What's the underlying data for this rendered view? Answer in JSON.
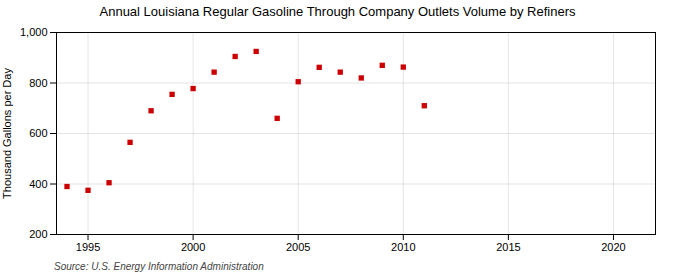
{
  "chart_data": {
    "type": "scatter",
    "title": "Annual Louisiana Regular Gasoline Through Company Outlets Volume by Refiners",
    "ylabel": "Thousand Gallons per Day",
    "annotations": [
      "Source: U.S. Energy Information Administration"
    ],
    "x": [
      1994,
      1995,
      1996,
      1997,
      1998,
      1999,
      2000,
      2001,
      2002,
      2003,
      2004,
      2005,
      2006,
      2007,
      2008,
      2009,
      2010,
      2011
    ],
    "values": [
      390,
      375,
      405,
      565,
      690,
      755,
      778,
      843,
      905,
      925,
      660,
      805,
      862,
      843,
      820,
      870,
      863,
      710
    ],
    "color": "#cc0000",
    "marker": "square",
    "xlim": [
      1993.5,
      2022
    ],
    "xticks": [
      1995,
      2000,
      2005,
      2010,
      2015,
      2020
    ],
    "ylim": [
      200,
      1000
    ],
    "yticks": [
      200,
      400,
      600,
      800,
      {
        "value": 1000,
        "label": "1,000"
      }
    ],
    "grid": true
  }
}
